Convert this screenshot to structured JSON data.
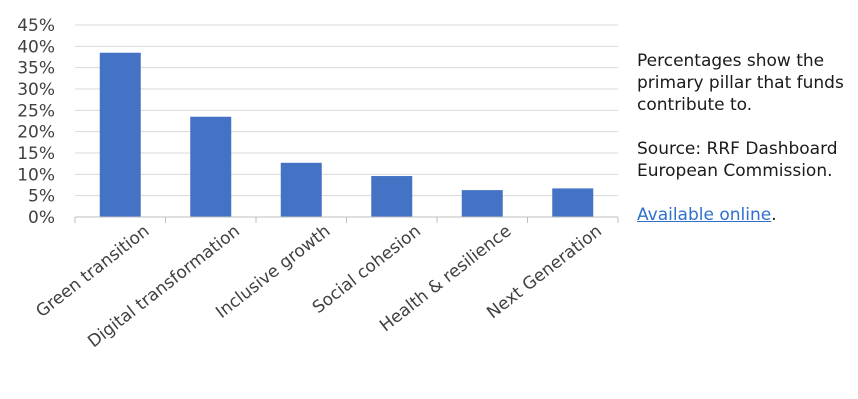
{
  "chart_data": {
    "type": "bar",
    "categories": [
      "Green transition",
      "Digital transformation",
      "Inclusive growth",
      "Social cohesion",
      "Health & resilience",
      "Next Generation"
    ],
    "values": [
      38.5,
      23.5,
      12.7,
      9.6,
      6.3,
      6.7
    ],
    "ylim": [
      0,
      45
    ],
    "yticks": [
      "0%",
      "5%",
      "10%",
      "15%",
      "20%",
      "25%",
      "30%",
      "35%",
      "40%",
      "45%"
    ],
    "grid": true,
    "bar_color": "#4472c4"
  },
  "notes": {
    "note": "Percentages show the primary pillar that funds contribute to.",
    "source": "Source: RRF Dashboard European Commission.",
    "link_text": "Available online",
    "link_suffix": "."
  }
}
